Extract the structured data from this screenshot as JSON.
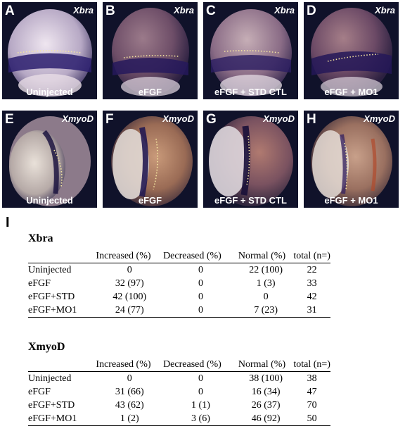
{
  "panels_xbra": [
    {
      "letter": "A",
      "gene": "Xbra",
      "condition": "Uninjected"
    },
    {
      "letter": "B",
      "gene": "Xbra",
      "condition": "eFGF"
    },
    {
      "letter": "C",
      "gene": "Xbra",
      "condition": "eFGF + STD CTL"
    },
    {
      "letter": "D",
      "gene": "Xbra",
      "condition": "eFGF +  MO1"
    }
  ],
  "panels_myod": [
    {
      "letter": "E",
      "gene": "XmyoD",
      "condition": "Uninjected"
    },
    {
      "letter": "F",
      "gene": "XmyoD",
      "condition": "eFGF"
    },
    {
      "letter": "G",
      "gene": "XmyoD",
      "condition": "eFGF + STD CTL"
    },
    {
      "letter": "H",
      "gene": "XmyoD",
      "condition": "eFGF +  MO1"
    }
  ],
  "panel_i_label": "I",
  "tables": [
    {
      "title": "Xbra",
      "headers": [
        "",
        "Increased (%)",
        "Decreased  (%)",
        "Normal (%)",
        "total  (n=)"
      ],
      "rows": [
        [
          "Uninjected",
          "0",
          "0",
          "22 (100)",
          "22"
        ],
        [
          "eFGF",
          "32 (97)",
          "0",
          "1 (3)",
          "33"
        ],
        [
          "eFGF+STD",
          "42 (100)",
          "0",
          "0",
          "42"
        ],
        [
          "eFGF+MO1",
          "24 (77)",
          "0",
          "7 (23)",
          "31"
        ]
      ]
    },
    {
      "title": "XmyoD",
      "headers": [
        "",
        "Increased (%)",
        "Decreased  (%)",
        "Normal (%)",
        "total  (n=)"
      ],
      "rows": [
        [
          "Uninjected",
          "0",
          "0",
          "38 (100)",
          "38"
        ],
        [
          "eFGF",
          "31 (66)",
          "0",
          "16 (34)",
          "47"
        ],
        [
          "eFGF+STD",
          "43 (62)",
          "1 (1)",
          "26 (37)",
          "70"
        ],
        [
          "eFGF+MO1",
          "1 (2)",
          "3 (6)",
          "46 (92)",
          "50"
        ]
      ]
    }
  ]
}
